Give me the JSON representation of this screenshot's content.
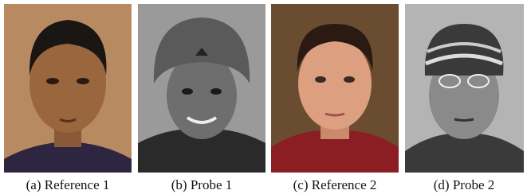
{
  "figure": {
    "panels": [
      {
        "caption": "(a) Reference 1"
      },
      {
        "caption": "(b) Probe 1"
      },
      {
        "caption": "(c) Reference 2"
      },
      {
        "caption": "(d) Probe 2"
      }
    ]
  }
}
